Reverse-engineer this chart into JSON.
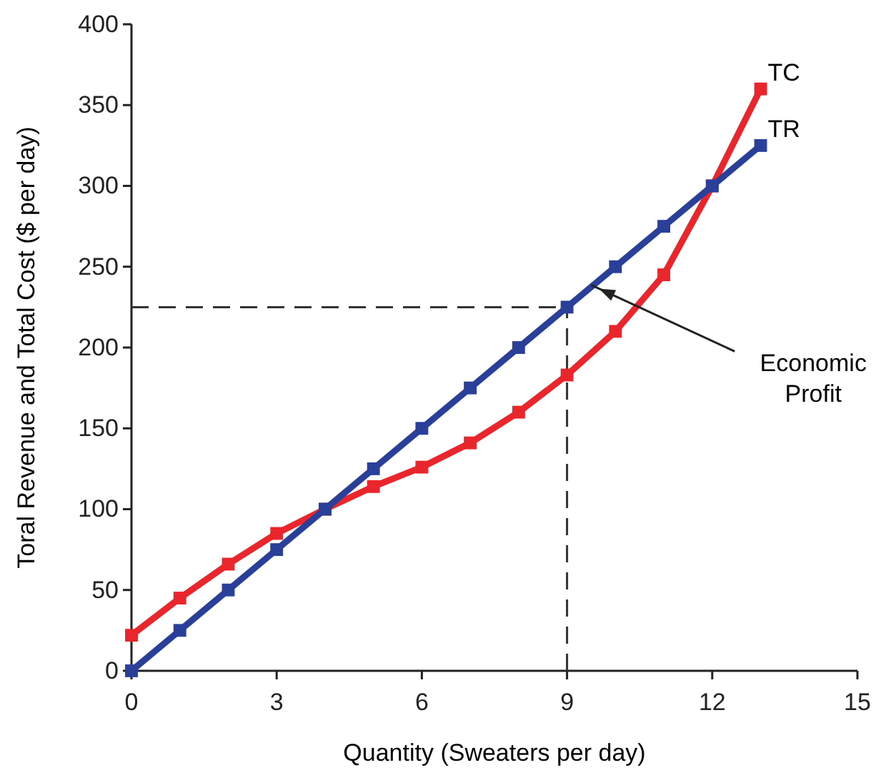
{
  "chart_data": {
    "type": "line",
    "xlabel": "Quantity (Sweaters per day)",
    "ylabel": "Toral Revenue and Total Cost ($ per day)",
    "x": [
      0,
      1,
      2,
      3,
      4,
      5,
      6,
      7,
      8,
      9,
      10,
      11,
      12,
      13
    ],
    "series": [
      {
        "name": "TC",
        "color": "#e8262b",
        "values": [
          22,
          45,
          66,
          85,
          100,
          114,
          126,
          141,
          160,
          183,
          210,
          245,
          300,
          360
        ]
      },
      {
        "name": "TR",
        "color": "#2a3f98",
        "values": [
          0,
          25,
          50,
          75,
          100,
          125,
          150,
          175,
          200,
          225,
          250,
          275,
          300,
          325
        ]
      }
    ],
    "xlim": [
      0,
      15
    ],
    "xticks": [
      0,
      3,
      6,
      9,
      12,
      15
    ],
    "ylim": [
      0,
      400
    ],
    "yticks": [
      0,
      50,
      100,
      150,
      200,
      250,
      300,
      350,
      400
    ],
    "ref_lines": [
      {
        "axis": "y",
        "value": 225,
        "line_style": "dashed",
        "color": "#333333"
      },
      {
        "axis": "x",
        "value": 9,
        "line_style": "dashed",
        "color": "#333333"
      }
    ],
    "annotations": [
      {
        "text": "Economic Profit",
        "x": 9.6,
        "y": 240
      }
    ],
    "grid": false,
    "marker": "square",
    "line_style": "solid"
  }
}
